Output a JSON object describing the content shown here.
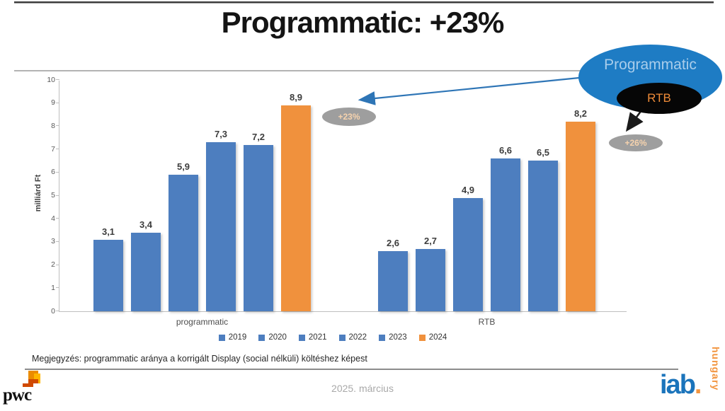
{
  "slide": {
    "title": "Programmatic: +23%",
    "note": "Megjegyzés: programmatic aránya a korrigált Display (social nélküli) költéshez képest",
    "footer_date": "2025. március"
  },
  "chart_data": {
    "type": "bar",
    "title": "Programmatic: +23%",
    "ylabel": "milliárd Ft",
    "ylim": [
      0,
      10
    ],
    "yticks": [
      0,
      1,
      2,
      3,
      4,
      5,
      6,
      7,
      8,
      9,
      10
    ],
    "grid": false,
    "legend_position": "bottom",
    "categories": [
      "programmatic",
      "RTB"
    ],
    "series": [
      {
        "name": "2019",
        "color": "#4d7ebf",
        "values": [
          3.1,
          2.6
        ],
        "labels": [
          "3,1",
          "2,6"
        ]
      },
      {
        "name": "2020",
        "color": "#4d7ebf",
        "values": [
          3.4,
          2.7
        ],
        "labels": [
          "3,4",
          "2,7"
        ]
      },
      {
        "name": "2021",
        "color": "#4d7ebf",
        "values": [
          5.9,
          4.9
        ],
        "labels": [
          "5,9",
          "4,9"
        ]
      },
      {
        "name": "2022",
        "color": "#4d7ebf",
        "values": [
          7.3,
          6.6
        ],
        "labels": [
          "7,3",
          "6,6"
        ]
      },
      {
        "name": "2023",
        "color": "#4d7ebf",
        "values": [
          7.2,
          6.5
        ],
        "labels": [
          "7,2",
          "6,5"
        ]
      },
      {
        "name": "2024",
        "color": "#f0913d",
        "values": [
          8.9,
          8.2
        ],
        "labels": [
          "8,9",
          "8,2"
        ]
      }
    ]
  },
  "callouts": {
    "programmatic_bubble_label": "Programmatic",
    "rtb_bubble_label": "RTB",
    "programmatic_change": "+23%",
    "rtb_change": "+26%"
  },
  "logos": {
    "pwc_text": "pwc",
    "iab_text": "iab",
    "iab_dot": ".",
    "iab_sub": "hungary"
  },
  "colors": {
    "bar_blue": "#4d7ebf",
    "bar_orange": "#f0913d",
    "bubble_blue": "#1e7cc4",
    "bubble_black": "#060606",
    "badge_gray": "#9e9e9e",
    "arrow_blue": "#2e75b6",
    "arrow_black": "#1a1a1a"
  }
}
